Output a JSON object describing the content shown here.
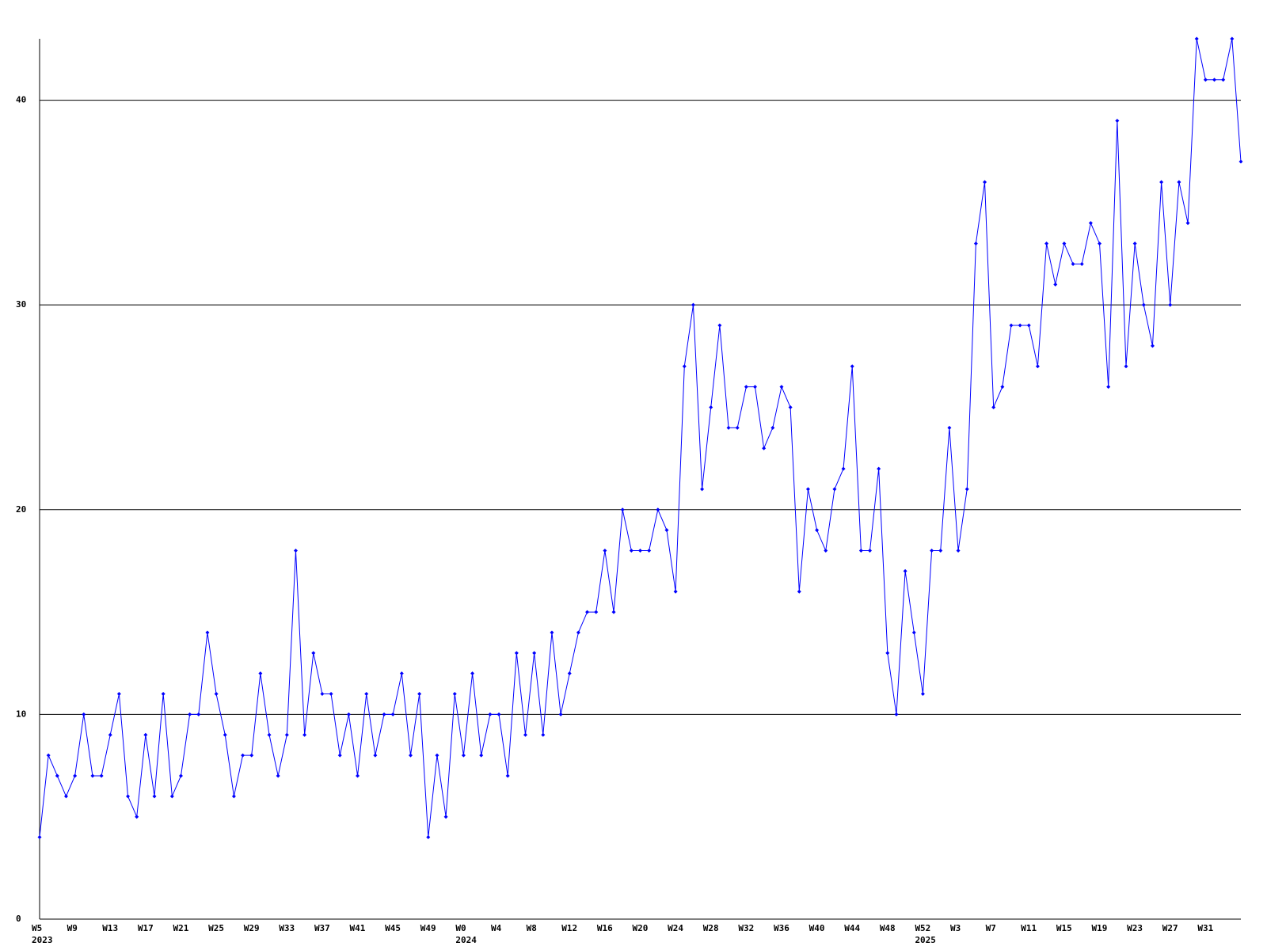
{
  "chart_data": {
    "type": "line",
    "categories": [
      "W5",
      null,
      null,
      null,
      "W9",
      null,
      null,
      null,
      "W13",
      null,
      null,
      null,
      "W17",
      null,
      null,
      null,
      "W21",
      null,
      null,
      null,
      "W25",
      null,
      null,
      null,
      "W29",
      null,
      null,
      null,
      "W33",
      null,
      null,
      null,
      "W37",
      null,
      null,
      null,
      "W41",
      null,
      null,
      null,
      "W45",
      null,
      null,
      null,
      "W49",
      null,
      null,
      null,
      "W0",
      null,
      null,
      null,
      "W4",
      null,
      null,
      null,
      "W8",
      null,
      null,
      null,
      "W12",
      null,
      null,
      null,
      "W16",
      null,
      null,
      null,
      "W20",
      null,
      null,
      null,
      "W24",
      null,
      null,
      null,
      "W28",
      null,
      null,
      null,
      "W32",
      null,
      null,
      null,
      "W36",
      null,
      null,
      null,
      "W40",
      null,
      null,
      null,
      "W44",
      null,
      null,
      null,
      "W48",
      null,
      null,
      null,
      "W52",
      null,
      null,
      null,
      "W3",
      null,
      null,
      null,
      "W7",
      null,
      null,
      null,
      "W11",
      null,
      null,
      null,
      "W15",
      null,
      null,
      null,
      "W19",
      null,
      null,
      null,
      "W23",
      null,
      null,
      null,
      "W27",
      null,
      null,
      null,
      "W31",
      null,
      null,
      null,
      null
    ],
    "year_categories": [
      "2023",
      null,
      null,
      null,
      null,
      null,
      null,
      null,
      null,
      null,
      null,
      null,
      null,
      null,
      null,
      null,
      null,
      null,
      null,
      null,
      null,
      null,
      null,
      null,
      null,
      null,
      null,
      null,
      null,
      null,
      null,
      null,
      null,
      null,
      null,
      null,
      null,
      null,
      null,
      null,
      null,
      null,
      null,
      null,
      null,
      null,
      null,
      null,
      "2024",
      null,
      null,
      null,
      null,
      null,
      null,
      null,
      null,
      null,
      null,
      null,
      null,
      null,
      null,
      null,
      null,
      null,
      null,
      null,
      null,
      null,
      null,
      null,
      null,
      null,
      null,
      null,
      null,
      null,
      null,
      null,
      null,
      null,
      null,
      null,
      null,
      null,
      null,
      null,
      null,
      null,
      null,
      null,
      null,
      null,
      null,
      null,
      null,
      null,
      null,
      null,
      "2025",
      null,
      null,
      null,
      null,
      null,
      null,
      null,
      null,
      null,
      null,
      null,
      null,
      null,
      null,
      null,
      null,
      null,
      null,
      null,
      null,
      null,
      null,
      null,
      null,
      null,
      null,
      null,
      null,
      null,
      null,
      null,
      null,
      null,
      null,
      null
    ],
    "series": [
      {
        "color": "#0000ff",
        "values": [
          4,
          8,
          7,
          6,
          7,
          10,
          7,
          7,
          9,
          11,
          6,
          5,
          9,
          6,
          11,
          6,
          7,
          10,
          10,
          14,
          11,
          9,
          6,
          8,
          8,
          12,
          9,
          7,
          9,
          18,
          9,
          13,
          11,
          11,
          8,
          10,
          7,
          11,
          8,
          10,
          10,
          12,
          8,
          11,
          4,
          8,
          5,
          11,
          8,
          12,
          8,
          10,
          10,
          7,
          13,
          9,
          13,
          9,
          14,
          10,
          12,
          14,
          15,
          15,
          18,
          15,
          20,
          18,
          18,
          18,
          20,
          19,
          16,
          27,
          30,
          21,
          25,
          29,
          24,
          24,
          26,
          26,
          23,
          24,
          26,
          25,
          16,
          21,
          19,
          18,
          21,
          22,
          27,
          18,
          18,
          22,
          13,
          10,
          17,
          14,
          11,
          18,
          18,
          24,
          18,
          21,
          33,
          36,
          25,
          26,
          29,
          29,
          29,
          27,
          33,
          31,
          33,
          32,
          32,
          34,
          33,
          26,
          39,
          27,
          33,
          30,
          28,
          36,
          30,
          36,
          34,
          43,
          41,
          41,
          41,
          43,
          37
        ]
      }
    ],
    "ylim": [
      0,
      43
    ],
    "yticks": [
      0,
      10,
      20,
      30,
      40
    ],
    "grid": true
  }
}
